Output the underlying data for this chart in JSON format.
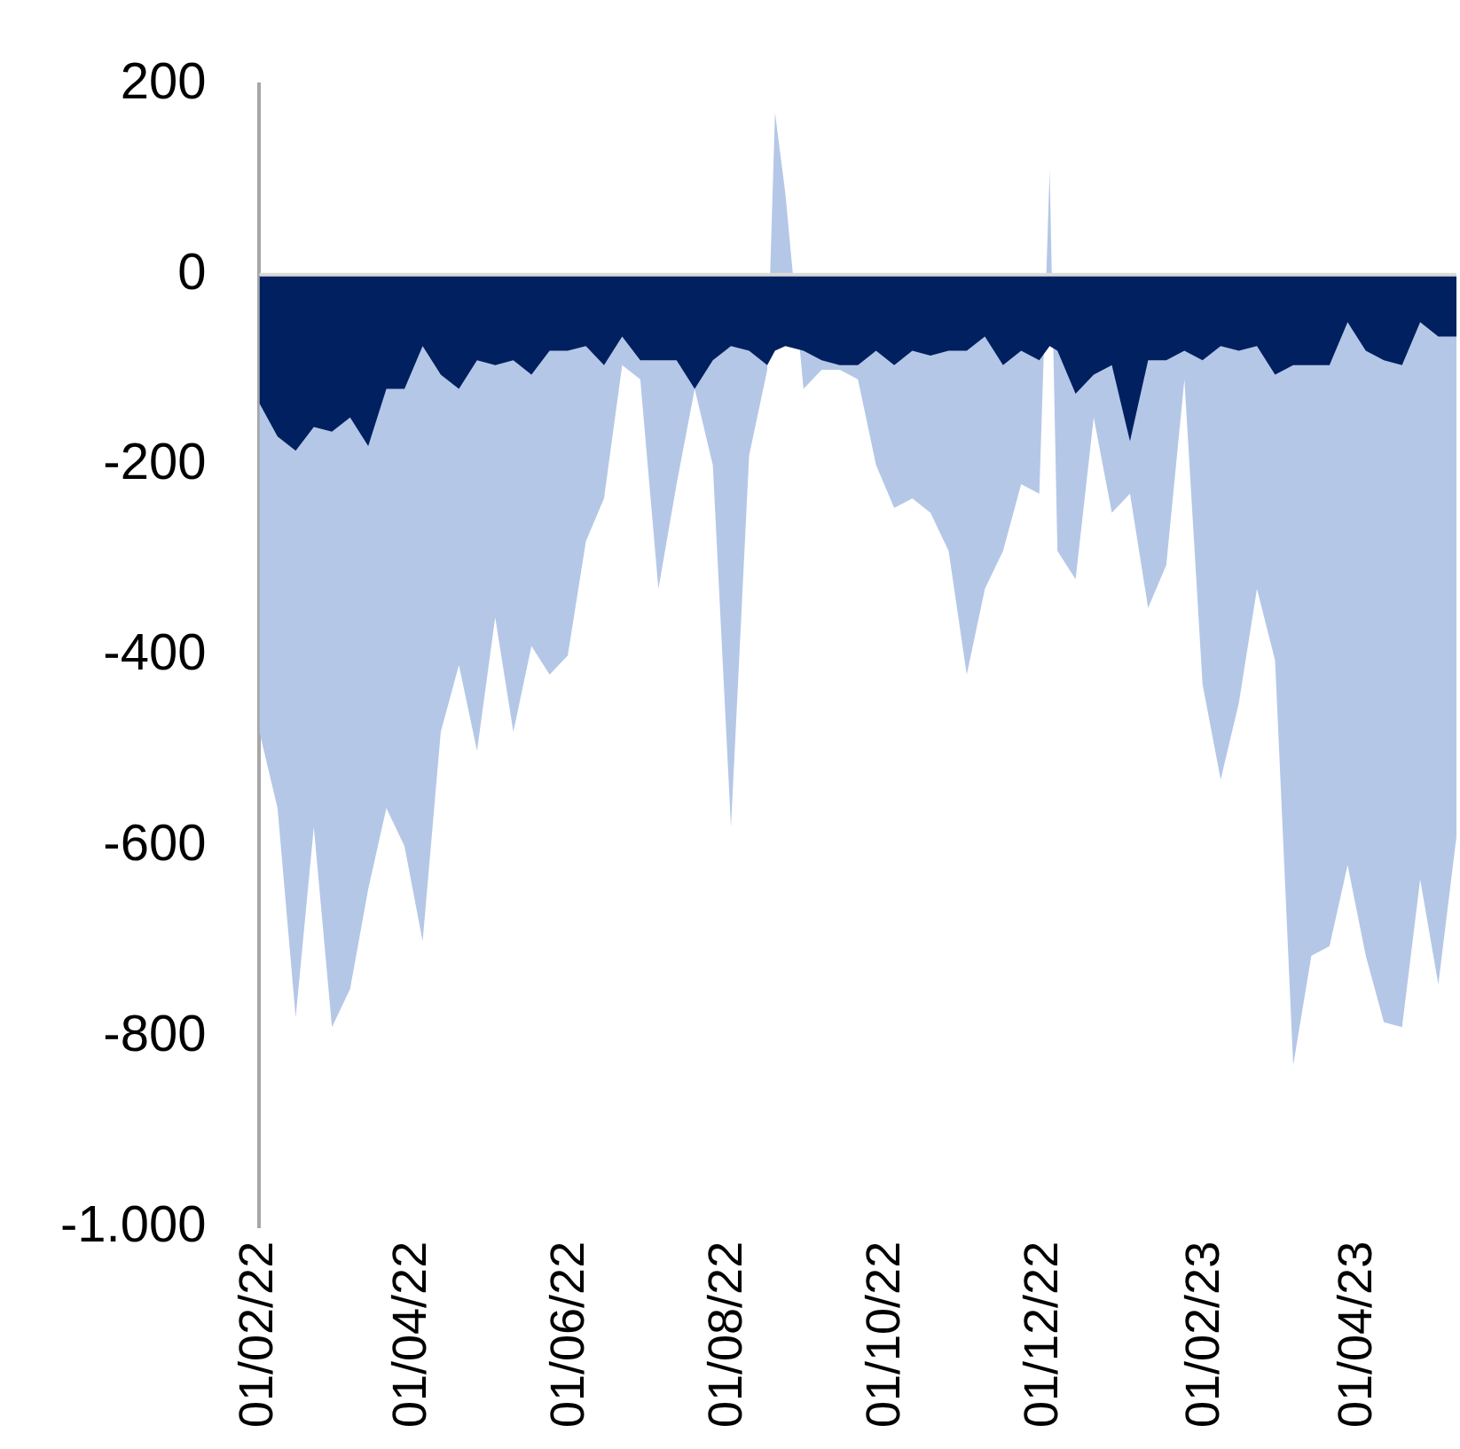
{
  "chart_data": {
    "type": "area",
    "x": [
      "2022-02-01",
      "2022-02-08",
      "2022-02-15",
      "2022-02-22",
      "2022-03-01",
      "2022-03-08",
      "2022-03-15",
      "2022-03-22",
      "2022-03-29",
      "2022-04-05",
      "2022-04-12",
      "2022-04-19",
      "2022-04-26",
      "2022-05-03",
      "2022-05-10",
      "2022-05-17",
      "2022-05-24",
      "2022-05-31",
      "2022-06-07",
      "2022-06-14",
      "2022-06-21",
      "2022-06-28",
      "2022-07-05",
      "2022-07-12",
      "2022-07-19",
      "2022-07-26",
      "2022-08-02",
      "2022-08-09",
      "2022-08-16",
      "2022-08-19",
      "2022-08-23",
      "2022-08-30",
      "2022-09-06",
      "2022-09-13",
      "2022-09-20",
      "2022-09-27",
      "2022-10-04",
      "2022-10-11",
      "2022-10-18",
      "2022-10-25",
      "2022-11-01",
      "2022-11-08",
      "2022-11-15",
      "2022-11-22",
      "2022-11-29",
      "2022-12-03",
      "2022-12-06",
      "2022-12-13",
      "2022-12-20",
      "2022-12-27",
      "2023-01-03",
      "2023-01-10",
      "2023-01-17",
      "2023-01-24",
      "2023-01-31",
      "2023-02-07",
      "2023-02-14",
      "2023-02-21",
      "2023-02-28",
      "2023-03-07",
      "2023-03-14",
      "2023-03-21",
      "2023-03-28",
      "2023-04-04",
      "2023-04-11",
      "2023-04-18",
      "2023-04-25",
      "2023-05-02",
      "2023-05-09"
    ],
    "series": [
      {
        "color": "#b4c7e7",
        "values": [
          -480,
          -560,
          -780,
          -580,
          -790,
          -750,
          -645,
          -560,
          -600,
          -700,
          -480,
          -410,
          -500,
          -360,
          -480,
          -390,
          -420,
          -400,
          -280,
          -235,
          -95,
          -110,
          -330,
          -220,
          -120,
          -200,
          -580,
          -190,
          -100,
          170,
          85,
          -120,
          -100,
          -100,
          -110,
          -200,
          -245,
          -235,
          -250,
          -290,
          -420,
          -330,
          -290,
          -220,
          -230,
          110,
          -290,
          -320,
          -150,
          -250,
          -230,
          -350,
          -305,
          -110,
          -430,
          -530,
          -450,
          -330,
          -405,
          -830,
          -715,
          -705,
          -620,
          -715,
          -785,
          -790,
          -635,
          -745,
          -590
        ]
      },
      {
        "color": "#002060",
        "values": [
          -135,
          -170,
          -185,
          -160,
          -165,
          -150,
          -180,
          -120,
          -120,
          -75,
          -105,
          -120,
          -90,
          -95,
          -90,
          -105,
          -80,
          -80,
          -75,
          -95,
          -65,
          -90,
          -90,
          -90,
          -120,
          -90,
          -75,
          -80,
          -95,
          -80,
          -75,
          -80,
          -90,
          -95,
          -95,
          -80,
          -95,
          -80,
          -85,
          -80,
          -80,
          -65,
          -95,
          -80,
          -90,
          -75,
          -80,
          -125,
          -105,
          -95,
          -175,
          -90,
          -90,
          -80,
          -90,
          -75,
          -80,
          -75,
          -105,
          -95,
          -95,
          -95,
          -50,
          -80,
          -90,
          -95,
          -50,
          -65,
          -65
        ]
      }
    ],
    "xlim": [
      "2022-02-01",
      "2023-05-09"
    ],
    "xticks": [
      {
        "value": "2022-02-01",
        "label": "01/02/22"
      },
      {
        "value": "2022-04-01",
        "label": "01/04/22"
      },
      {
        "value": "2022-06-01",
        "label": "01/06/22"
      },
      {
        "value": "2022-08-01",
        "label": "01/08/22"
      },
      {
        "value": "2022-10-01",
        "label": "01/10/22"
      },
      {
        "value": "2022-12-01",
        "label": "01/12/22"
      },
      {
        "value": "2023-02-01",
        "label": "01/02/23"
      },
      {
        "value": "2023-04-01",
        "label": "01/04/23"
      }
    ],
    "ylim": [
      -1000,
      200
    ],
    "yticks": [
      {
        "value": -1000,
        "label": "-1.000"
      },
      -800,
      -600,
      -400,
      -200,
      0,
      200
    ],
    "ref_lines": [
      {
        "axis": "y",
        "value": 0,
        "color": "#d9d9d9"
      }
    ]
  }
}
